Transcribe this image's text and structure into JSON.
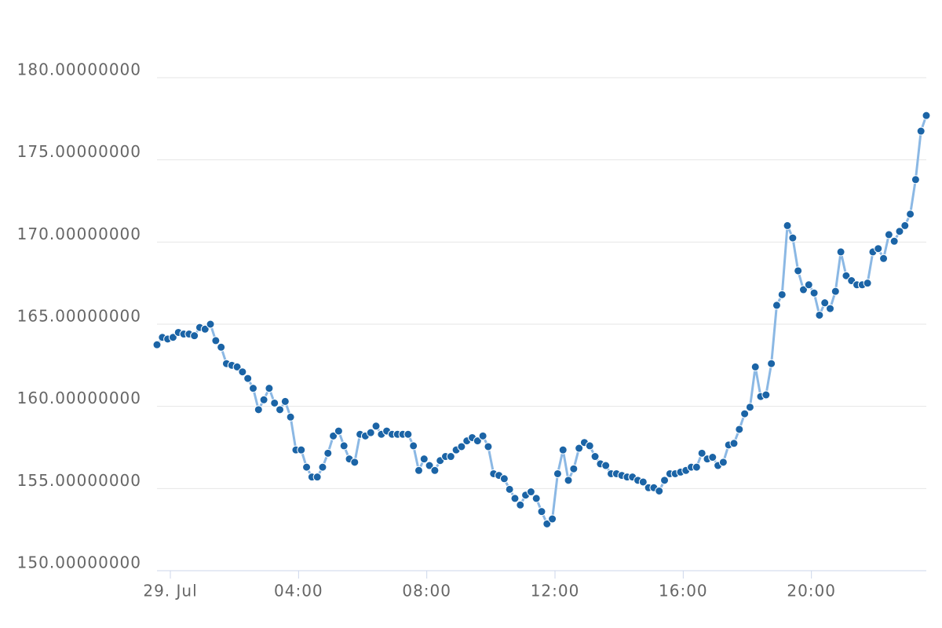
{
  "chart_data": {
    "type": "line",
    "x": [
      -25,
      -15,
      -5,
      5,
      15,
      25,
      35,
      45,
      55,
      65,
      75,
      85,
      95,
      105,
      115,
      125,
      135,
      145,
      155,
      165,
      175,
      185,
      195,
      205,
      215,
      225,
      235,
      245,
      255,
      265,
      275,
      285,
      295,
      305,
      315,
      325,
      335,
      345,
      355,
      365,
      375,
      385,
      395,
      405,
      415,
      425,
      435,
      445,
      455,
      465,
      475,
      485,
      495,
      505,
      515,
      525,
      535,
      545,
      555,
      565,
      575,
      585,
      595,
      605,
      615,
      625,
      635,
      645,
      655,
      665,
      675,
      685,
      695,
      705,
      715,
      725,
      735,
      745,
      755,
      765,
      775,
      785,
      795,
      805,
      815,
      825,
      835,
      845,
      855,
      865,
      875,
      885,
      895,
      905,
      915,
      925,
      935,
      945,
      955,
      965,
      975,
      985,
      995,
      1005,
      1015,
      1025,
      1035,
      1045,
      1055,
      1065,
      1075,
      1085,
      1095,
      1105,
      1115,
      1125,
      1135,
      1145,
      1155,
      1165,
      1175,
      1185,
      1195,
      1205,
      1215,
      1225,
      1235,
      1245,
      1255,
      1265,
      1275,
      1285,
      1295,
      1305,
      1315,
      1325,
      1335,
      1345,
      1355,
      1365,
      1375,
      1385,
      1395,
      1405,
      1415
    ],
    "values": [
      163.75,
      164.2,
      164.1,
      164.2,
      164.5,
      164.4,
      164.4,
      164.3,
      164.8,
      164.7,
      165.0,
      164.0,
      163.6,
      162.6,
      162.5,
      162.4,
      162.1,
      161.7,
      161.1,
      159.8,
      160.4,
      161.1,
      160.2,
      159.8,
      160.3,
      159.35,
      157.35,
      157.35,
      156.3,
      155.7,
      155.7,
      156.3,
      157.15,
      158.2,
      158.5,
      157.6,
      156.8,
      156.6,
      158.3,
      158.2,
      158.4,
      158.8,
      158.3,
      158.5,
      158.3,
      158.3,
      158.3,
      158.3,
      157.6,
      156.1,
      156.8,
      156.4,
      156.1,
      156.7,
      156.95,
      156.95,
      157.35,
      157.55,
      157.9,
      158.1,
      157.9,
      158.2,
      157.55,
      155.9,
      155.8,
      155.6,
      154.95,
      154.4,
      154.0,
      154.6,
      154.8,
      154.4,
      153.6,
      152.85,
      153.15,
      155.9,
      157.35,
      155.5,
      156.2,
      157.45,
      157.8,
      157.6,
      156.95,
      156.5,
      156.4,
      155.9,
      155.9,
      155.8,
      155.7,
      155.7,
      155.5,
      155.4,
      155.05,
      155.05,
      154.85,
      155.5,
      155.9,
      155.9,
      156.0,
      156.1,
      156.3,
      156.3,
      157.15,
      156.8,
      156.9,
      156.4,
      156.6,
      157.65,
      157.75,
      158.6,
      159.55,
      159.95,
      162.4,
      160.6,
      160.7,
      162.6,
      166.15,
      166.8,
      171.0,
      170.25,
      168.25,
      167.1,
      167.4,
      166.9,
      165.55,
      166.3,
      165.95,
      167.0,
      169.4,
      167.95,
      167.65,
      167.4,
      167.4,
      167.5,
      169.4,
      169.6,
      169.0,
      170.45,
      170.05,
      170.65,
      171.0,
      171.7,
      173.8,
      176.75,
      177.7
    ],
    "line_color": "#8bb8e4",
    "marker_color": "#1b64a6",
    "xlim": [
      -25,
      1415
    ],
    "xticks": [
      {
        "value": 0,
        "label": "29. Jul"
      },
      {
        "value": 240,
        "label": "04:00"
      },
      {
        "value": 480,
        "label": "08:00"
      },
      {
        "value": 720,
        "label": "12:00"
      },
      {
        "value": 960,
        "label": "16:00"
      },
      {
        "value": 1200,
        "label": "20:00"
      }
    ],
    "ylim": [
      150,
      180
    ],
    "yticks": [
      {
        "value": 150,
        "label": "150.00000000"
      },
      {
        "value": 155,
        "label": "155.00000000"
      },
      {
        "value": 160,
        "label": "160.00000000"
      },
      {
        "value": 165,
        "label": "165.00000000"
      },
      {
        "value": 170,
        "label": "170.00000000"
      },
      {
        "value": 175,
        "label": "175.00000000"
      },
      {
        "value": 180,
        "label": "180.00000000"
      }
    ],
    "grid": true
  }
}
